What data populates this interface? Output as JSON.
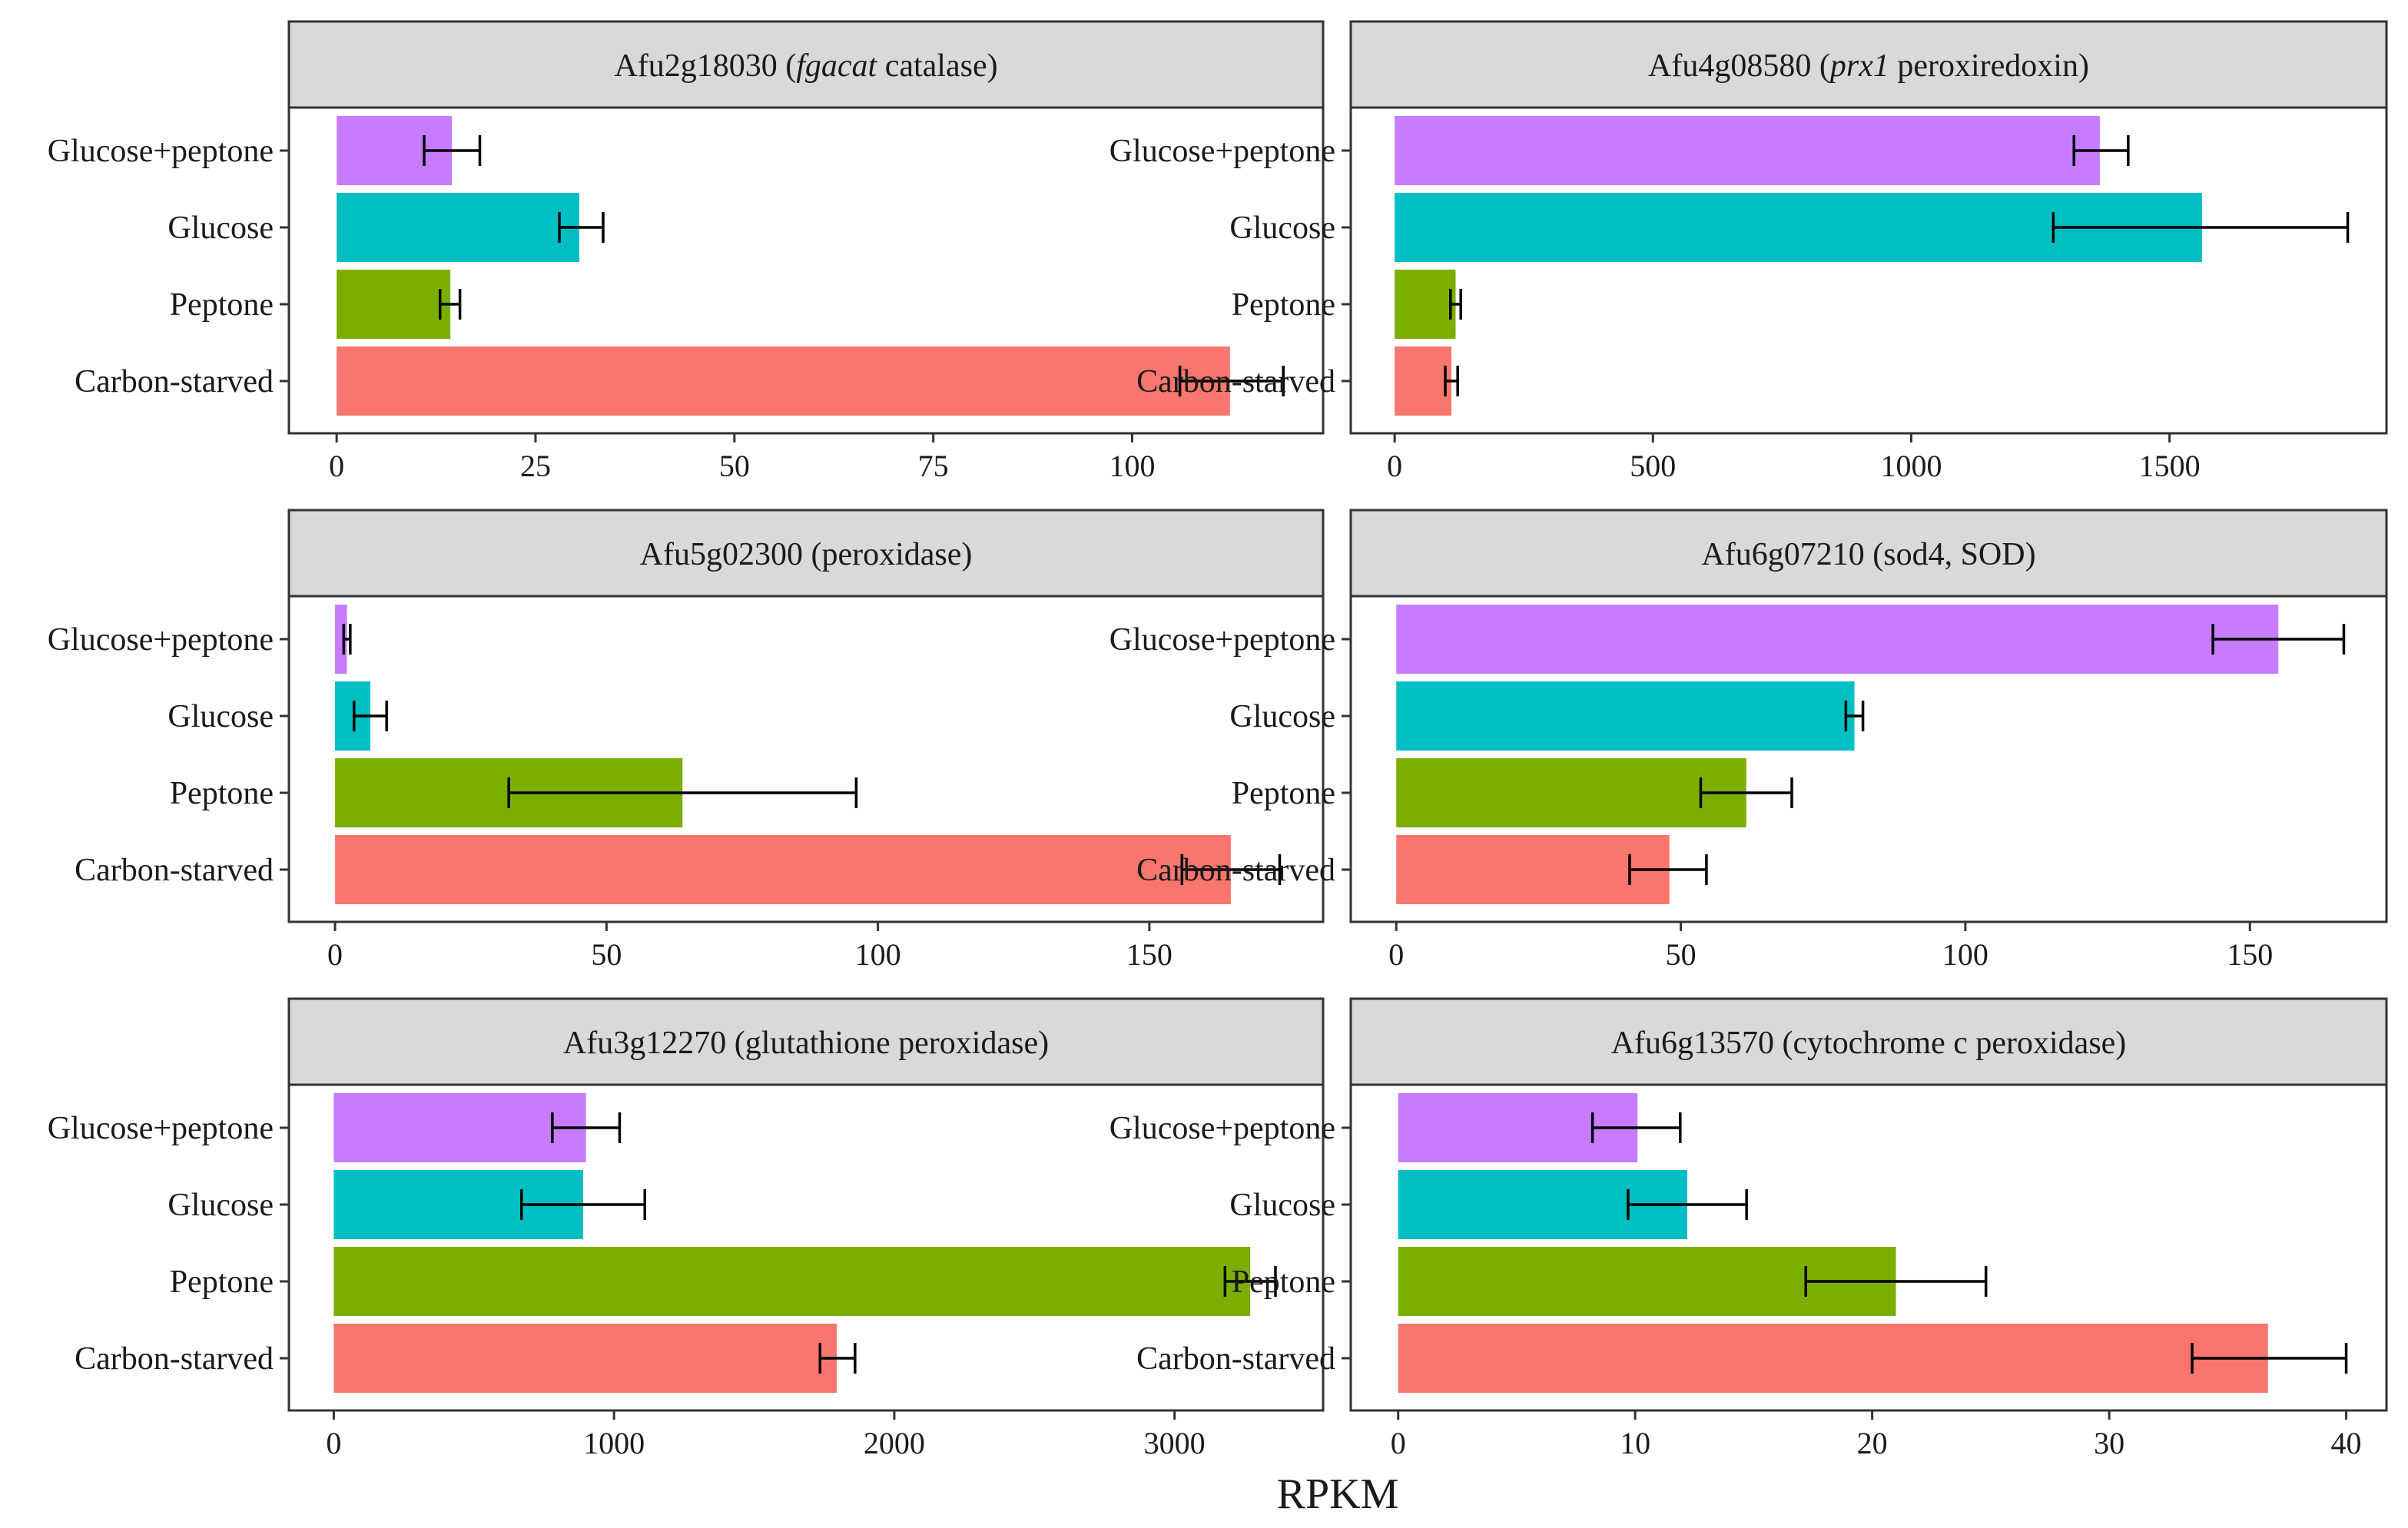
{
  "figure": {
    "xlabel": "RPKM"
  },
  "chart_data": [
    {
      "type": "bar",
      "orientation": "horizontal",
      "title_parts": [
        {
          "text": "Afu2g18030 ("
        },
        {
          "text": "fgacat",
          "italic": true
        },
        {
          "text": " catalase)"
        }
      ],
      "categories": [
        "Glucose+peptone",
        "Glucose",
        "Peptone",
        "Carbon-starved"
      ],
      "values": [
        14.5,
        30.5,
        14.3,
        112.3
      ],
      "errors": [
        [
          11,
          18
        ],
        [
          28,
          33.5
        ],
        [
          13,
          15.5
        ],
        [
          106,
          119
        ]
      ],
      "colors": [
        "#C77CFF",
        "#00BFC4",
        "#7CAE00",
        "#F8766D"
      ],
      "xlim": [
        -6,
        124
      ],
      "ticks": [
        0,
        25,
        50,
        75,
        100
      ],
      "tick_labels": [
        "0",
        "25",
        "50",
        "75",
        "100"
      ]
    },
    {
      "type": "bar",
      "orientation": "horizontal",
      "title_parts": [
        {
          "text": "Afu4g08580 ("
        },
        {
          "text": "prx1",
          "italic": true
        },
        {
          "text": " peroxiredoxin)"
        }
      ],
      "categories": [
        "Glucose+peptone",
        "Glucose",
        "Peptone",
        "Carbon-starved"
      ],
      "values": [
        1365,
        1563,
        118,
        110
      ],
      "errors": [
        [
          1315,
          1420
        ],
        [
          1275,
          1845
        ],
        [
          108,
          128
        ],
        [
          98,
          122
        ]
      ],
      "colors": [
        "#C77CFF",
        "#00BFC4",
        "#7CAE00",
        "#F8766D"
      ],
      "xlim": [
        -85,
        1920
      ],
      "ticks": [
        0,
        500,
        1000,
        1500
      ],
      "tick_labels": [
        "0",
        "500",
        "1000",
        "1500"
      ]
    },
    {
      "type": "bar",
      "orientation": "horizontal",
      "title_parts": [
        {
          "text": "Afu5g02300 (peroxidase)"
        }
      ],
      "categories": [
        "Glucose+peptone",
        "Glucose",
        "Peptone",
        "Carbon-starved"
      ],
      "values": [
        2.2,
        6.5,
        64,
        165
      ],
      "errors": [
        [
          1.6,
          2.8
        ],
        [
          3.5,
          9.5
        ],
        [
          32,
          96
        ],
        [
          156,
          174
        ]
      ],
      "colors": [
        "#C77CFF",
        "#00BFC4",
        "#7CAE00",
        "#F8766D"
      ],
      "xlim": [
        -8.5,
        182
      ],
      "ticks": [
        0,
        50,
        100,
        150
      ],
      "tick_labels": [
        "0",
        "50",
        "100",
        "150"
      ]
    },
    {
      "type": "bar",
      "orientation": "horizontal",
      "title_parts": [
        {
          "text": "Afu6g07210 (sod4, SOD)"
        }
      ],
      "categories": [
        "Glucose+peptone",
        "Glucose",
        "Peptone",
        "Carbon-starved"
      ],
      "values": [
        155,
        80.5,
        61.5,
        48
      ],
      "errors": [
        [
          143.5,
          166.5
        ],
        [
          79,
          82
        ],
        [
          53.5,
          69.5
        ],
        [
          41,
          54.5
        ]
      ],
      "colors": [
        "#C77CFF",
        "#00BFC4",
        "#7CAE00",
        "#F8766D"
      ],
      "xlim": [
        -8,
        174
      ],
      "ticks": [
        0,
        50,
        100,
        150
      ],
      "tick_labels": [
        "0",
        "50",
        "100",
        "150"
      ]
    },
    {
      "type": "bar",
      "orientation": "horizontal",
      "title_parts": [
        {
          "text": "Afu3g12270 (glutathione peroxidase)"
        }
      ],
      "categories": [
        "Glucose+peptone",
        "Glucose",
        "Peptone",
        "Carbon-starved"
      ],
      "values": [
        900,
        890,
        3270,
        1795
      ],
      "errors": [
        [
          780,
          1020
        ],
        [
          670,
          1110
        ],
        [
          3180,
          3360
        ],
        [
          1735,
          1860
        ]
      ],
      "colors": [
        "#C77CFF",
        "#00BFC4",
        "#7CAE00",
        "#F8766D"
      ],
      "xlim": [
        -160,
        3530
      ],
      "ticks": [
        0,
        1000,
        2000,
        3000
      ],
      "tick_labels": [
        "0",
        "1000",
        "2000",
        "3000"
      ]
    },
    {
      "type": "bar",
      "orientation": "horizontal",
      "title_parts": [
        {
          "text": "Afu6g13570 (cytochrome c peroxidase)"
        }
      ],
      "categories": [
        "Glucose+peptone",
        "Glucose",
        "Peptone",
        "Carbon-starved"
      ],
      "values": [
        10.1,
        12.2,
        21,
        36.7
      ],
      "errors": [
        [
          8.2,
          11.9
        ],
        [
          9.7,
          14.7
        ],
        [
          17.2,
          24.8
        ],
        [
          33.5,
          40
        ]
      ],
      "colors": [
        "#C77CFF",
        "#00BFC4",
        "#7CAE00",
        "#F8766D"
      ],
      "xlim": [
        -2,
        41.7
      ],
      "ticks": [
        0,
        10,
        20,
        30,
        40
      ],
      "tick_labels": [
        "0",
        "10",
        "20",
        "30",
        "40"
      ]
    }
  ]
}
